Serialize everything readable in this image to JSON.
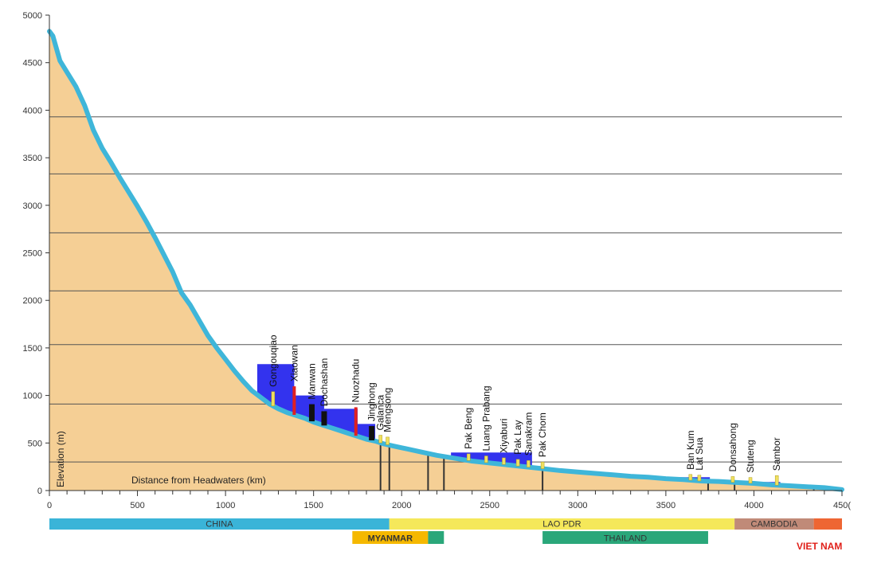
{
  "chart_data": {
    "type": "area",
    "title": "",
    "xlabel": "Distance from Headwaters (km)",
    "ylabel": "Elevation (m)",
    "xlim": [
      0,
      4500
    ],
    "ylim": [
      0,
      5000
    ],
    "x_ticks": [
      "0",
      "500",
      "1000",
      "1500",
      "2000",
      "2500",
      "3000",
      "3500",
      "4000",
      "450("
    ],
    "y_ticks": [
      "0",
      "500",
      "1000",
      "1500",
      "2000",
      "2500",
      "3000",
      "3500",
      "4000",
      "4500",
      "5000"
    ],
    "grid_y_values": [
      300,
      910,
      1535,
      2100,
      2710,
      3330,
      3930
    ],
    "profile": {
      "x": [
        0,
        20,
        60,
        100,
        150,
        200,
        250,
        300,
        350,
        400,
        450,
        500,
        550,
        600,
        650,
        700,
        750,
        800,
        850,
        900,
        950,
        1000,
        1050,
        1100,
        1150,
        1200,
        1250,
        1300,
        1350,
        1400,
        1450,
        1500,
        1550,
        1600,
        1650,
        1700,
        1750,
        1800,
        1850,
        1900,
        1950,
        2000,
        2100,
        2200,
        2300,
        2400,
        2500,
        2600,
        2700,
        2800,
        2900,
        3000,
        3100,
        3200,
        3300,
        3400,
        3500,
        3600,
        3700,
        3800,
        3900,
        4000,
        4100,
        4200,
        4300,
        4400,
        4500
      ],
      "y": [
        4830,
        4780,
        4520,
        4400,
        4250,
        4050,
        3790,
        3600,
        3450,
        3290,
        3140,
        2990,
        2830,
        2660,
        2480,
        2300,
        2080,
        1950,
        1790,
        1630,
        1500,
        1380,
        1260,
        1150,
        1050,
        980,
        910,
        860,
        820,
        790,
        760,
        720,
        690,
        660,
        630,
        600,
        570,
        540,
        520,
        490,
        470,
        450,
        410,
        370,
        340,
        310,
        290,
        270,
        250,
        230,
        210,
        195,
        180,
        165,
        150,
        140,
        125,
        115,
        100,
        95,
        85,
        75,
        60,
        50,
        40,
        30,
        10
      ]
    },
    "reservoirs": [
      {
        "x0": 1180,
        "x1": 1390,
        "y": 1330
      },
      {
        "x0": 1390,
        "x1": 1560,
        "y": 1000
      },
      {
        "x0": 1560,
        "x1": 1750,
        "y": 860
      },
      {
        "x0": 1740,
        "x1": 1850,
        "y": 700
      },
      {
        "x0": 2280,
        "x1": 2740,
        "y": 400
      },
      {
        "x0": 3560,
        "x1": 3750,
        "y": 140
      },
      {
        "x0": 3980,
        "x1": 4150,
        "y": 90
      }
    ],
    "dams": [
      {
        "name": "Gongouqiao",
        "x": 1270,
        "height": 150,
        "color": "#f0e060"
      },
      {
        "name": "Xiaowan",
        "x": 1390,
        "height": 300,
        "color": "#e02020"
      },
      {
        "name": "Manwan",
        "x": 1490,
        "height": 180,
        "color": "#111111"
      },
      {
        "name": "Dochashan",
        "x": 1560,
        "height": 150,
        "color": "#111111"
      },
      {
        "name": "Nuozhadu",
        "x": 1740,
        "height": 300,
        "color": "#e02020"
      },
      {
        "name": "Jinghong",
        "x": 1830,
        "height": 150,
        "color": "#111111"
      },
      {
        "name": "Galanca",
        "x": 1880,
        "height": 80,
        "color": "#f0e060"
      },
      {
        "name": "Mengsong",
        "x": 1920,
        "height": 80,
        "color": "#f0e060"
      },
      {
        "name": "Pak Beng",
        "x": 2380,
        "height": 70,
        "color": "#f0e060"
      },
      {
        "name": "Luang Prabang",
        "x": 2480,
        "height": 70,
        "color": "#f0e060"
      },
      {
        "name": "Xiyaburi",
        "x": 2580,
        "height": 70,
        "color": "#f0e060"
      },
      {
        "name": "Pak Lay",
        "x": 2660,
        "height": 70,
        "color": "#f0e060"
      },
      {
        "name": "Sanakram",
        "x": 2720,
        "height": 70,
        "color": "#f0e060"
      },
      {
        "name": "Pak Chom",
        "x": 2800,
        "height": 70,
        "color": "#f0e060"
      },
      {
        "name": "Ban Kum",
        "x": 3640,
        "height": 60,
        "color": "#f0e060"
      },
      {
        "name": "Lat Sua",
        "x": 3690,
        "height": 60,
        "color": "#f0e060"
      },
      {
        "name": "Donsahong",
        "x": 3880,
        "height": 60,
        "color": "#f0e060"
      },
      {
        "name": "Stuteng",
        "x": 3980,
        "height": 60,
        "color": "#f0e060"
      },
      {
        "name": "Sambor",
        "x": 4130,
        "height": 100,
        "color": "#f0e060"
      }
    ],
    "boundary_lines_x": [
      1880,
      1930,
      2150,
      2240,
      2800,
      3740,
      3890,
      4340
    ],
    "countries": [
      {
        "name": "CHINA",
        "x0": 0,
        "x1": 1930,
        "row": 0,
        "color": "#3ab4d8",
        "bold": false
      },
      {
        "name": "LAO PDR",
        "x0": 1930,
        "x1": 3890,
        "row": 0,
        "color": "#f5e85a",
        "bold": false
      },
      {
        "name": "CAMBODIA",
        "x0": 3890,
        "x1": 4340,
        "row": 0,
        "color": "#c08a78",
        "bold": false
      },
      {
        "name": "",
        "x0": 4340,
        "x1": 4500,
        "row": 0,
        "color": "#ee6633",
        "bold": false
      },
      {
        "name": "MYANMAR",
        "x0": 1720,
        "x1": 2150,
        "row": 1,
        "color": "#f5b800",
        "bold": true
      },
      {
        "name": "",
        "x0": 2150,
        "x1": 2240,
        "row": 1,
        "color": "#2aa77a",
        "bold": false
      },
      {
        "name": "THAILAND",
        "x0": 2800,
        "x1": 3740,
        "row": 1,
        "color": "#2aa77a",
        "bold": false
      }
    ],
    "extra_label": "VIET NAM",
    "colors": {
      "terrain": "#f5cf95",
      "river": "#3fb6d9",
      "reservoir": "#3333ee",
      "grid": "#555555",
      "axis": "#333333"
    }
  }
}
